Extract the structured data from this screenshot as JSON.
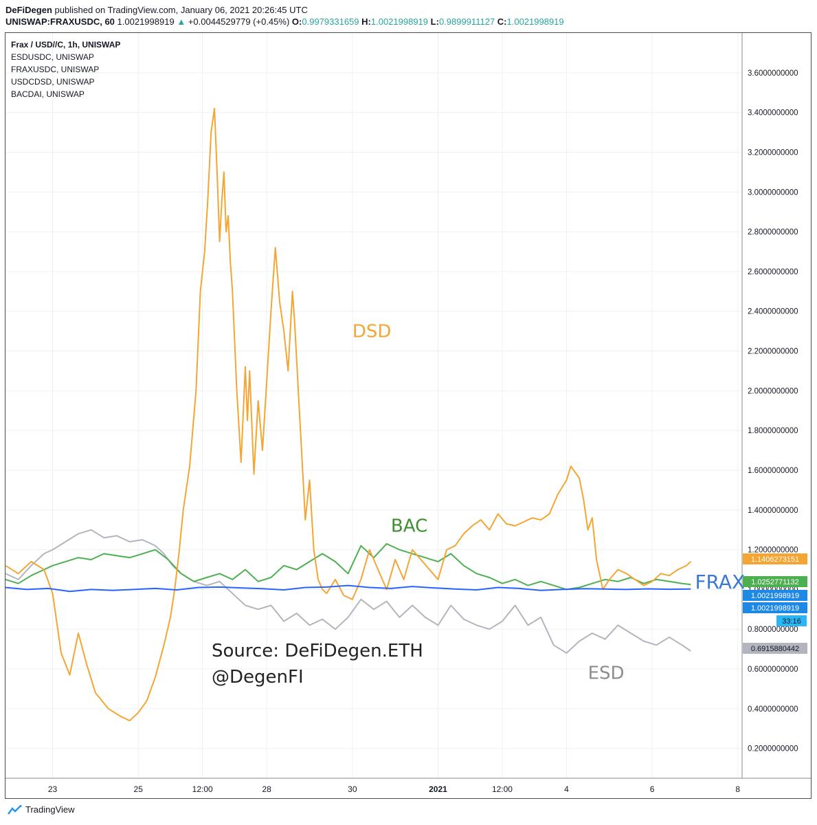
{
  "header": {
    "author": "DeFiDegen",
    "published": "published on TradingView.com, January 06, 2021 20:26:45 UTC",
    "symbol": "UNISWAP:FRAXUSDC, 60",
    "last": "1.0021998919",
    "change": "+0.0044529779 (+0.45%)",
    "o_label": "O:",
    "o_value": "0.9979331659",
    "h_label": "H:",
    "h_value": "1.0021998919",
    "l_label": "L:",
    "l_value": "0.9899911127",
    "c_label": "C:",
    "c_value": "1.0021998919"
  },
  "legend": [
    "Frax / USD//C, 1h, UNISWAP",
    "ESDUSDC, UNISWAP",
    "FRAXUSDC, UNISWAP",
    "USDCDSD, UNISWAP",
    "BACDAI, UNISWAP"
  ],
  "source_text": [
    "Source: DeFiDegen.ETH",
    "@DegenFI"
  ],
  "footer": {
    "brand": "TradingView",
    "icon": "tradingview-cloud-icon"
  },
  "colors": {
    "dsd": "#f4a532",
    "bac": "#4caf50",
    "frax": "#2962ff",
    "esd": "#b2b5be"
  },
  "chart_data": {
    "type": "line",
    "ylim": [
      0.05,
      3.8
    ],
    "yticks": [
      "0.2000000000",
      "0.4000000000",
      "0.6000000000",
      "0.8000000000",
      "1.0000000000",
      "1.2000000000",
      "1.4000000000",
      "1.6000000000",
      "1.8000000000",
      "2.0000000000",
      "2.2000000000",
      "2.4000000000",
      "2.6000000000",
      "2.8000000000",
      "3.0000000000",
      "3.2000000000",
      "3.4000000000",
      "3.6000000000"
    ],
    "ytick_values": [
      0.2,
      0.4,
      0.6,
      0.8,
      1.0,
      1.2,
      1.4,
      1.6,
      1.8,
      2.0,
      2.2,
      2.4,
      2.6,
      2.8,
      3.0,
      3.2,
      3.4,
      3.6
    ],
    "xlim": [
      21.9,
      39.1
    ],
    "xticks": [
      {
        "label": "23",
        "t": 23.0,
        "bold": false
      },
      {
        "label": "25",
        "t": 25.0,
        "bold": false
      },
      {
        "label": "12:00",
        "t": 26.5,
        "bold": false
      },
      {
        "label": "28",
        "t": 28.0,
        "bold": false
      },
      {
        "label": "30",
        "t": 30.0,
        "bold": false
      },
      {
        "label": "2021",
        "t": 32.0,
        "bold": true
      },
      {
        "label": "12:00",
        "t": 33.5,
        "bold": false
      },
      {
        "label": "4",
        "t": 35.0,
        "bold": false
      },
      {
        "label": "6",
        "t": 37.0,
        "bold": false
      },
      {
        "label": "8",
        "t": 39.0,
        "bold": false
      }
    ],
    "series": [
      {
        "name": "DSD",
        "key": "dsd",
        "label_x": 30.0,
        "label_y": 2.27,
        "x": [
          21.9,
          22.2,
          22.5,
          22.8,
          23.0,
          23.2,
          23.4,
          23.6,
          23.8,
          24.0,
          24.3,
          24.6,
          24.8,
          25.0,
          25.2,
          25.4,
          25.6,
          25.75,
          25.85,
          25.95,
          26.05,
          26.2,
          26.35,
          26.45,
          26.55,
          26.62,
          26.7,
          26.78,
          26.85,
          26.9,
          26.95,
          27.0,
          27.05,
          27.1,
          27.15,
          27.2,
          27.3,
          27.4,
          27.5,
          27.55,
          27.6,
          27.7,
          27.8,
          27.9,
          28.0,
          28.1,
          28.2,
          28.3,
          28.4,
          28.5,
          28.6,
          28.65,
          28.75,
          28.85,
          28.9,
          29.0,
          29.1,
          29.2,
          29.3,
          29.4,
          29.6,
          29.8,
          30.0,
          30.2,
          30.4,
          30.6,
          30.8,
          31.0,
          31.2,
          31.4,
          31.6,
          31.8,
          32.0,
          32.2,
          32.4,
          32.6,
          32.8,
          33.0,
          33.2,
          33.4,
          33.6,
          33.8,
          34.0,
          34.2,
          34.4,
          34.6,
          34.8,
          35.0,
          35.1,
          35.3,
          35.4,
          35.5,
          35.6,
          35.7,
          35.85,
          36.0,
          36.2,
          36.4,
          36.6,
          36.8,
          37.0,
          37.2,
          37.4,
          37.6,
          37.8,
          37.9
        ],
        "y": [
          1.12,
          1.08,
          1.14,
          1.1,
          0.98,
          0.68,
          0.57,
          0.78,
          0.62,
          0.48,
          0.4,
          0.36,
          0.34,
          0.38,
          0.44,
          0.56,
          0.72,
          0.86,
          1.0,
          1.18,
          1.4,
          1.62,
          2.0,
          2.5,
          2.7,
          2.95,
          3.3,
          3.42,
          3.05,
          2.75,
          2.95,
          3.1,
          2.8,
          2.88,
          2.65,
          2.5,
          2.0,
          1.64,
          2.12,
          1.85,
          2.1,
          1.58,
          1.95,
          1.7,
          2.05,
          2.4,
          2.72,
          2.45,
          2.3,
          2.1,
          2.5,
          2.35,
          1.95,
          1.55,
          1.35,
          1.55,
          1.2,
          1.05,
          1.0,
          0.98,
          1.05,
          0.97,
          0.95,
          1.05,
          1.2,
          1.1,
          1.0,
          1.15,
          1.05,
          1.2,
          1.15,
          1.1,
          1.05,
          1.2,
          1.22,
          1.28,
          1.32,
          1.35,
          1.3,
          1.38,
          1.33,
          1.32,
          1.34,
          1.36,
          1.35,
          1.38,
          1.48,
          1.55,
          1.62,
          1.56,
          1.45,
          1.3,
          1.36,
          1.15,
          1.0,
          1.05,
          1.1,
          1.08,
          1.05,
          1.02,
          1.04,
          1.08,
          1.07,
          1.1,
          1.12,
          1.14
        ]
      },
      {
        "name": "BAC",
        "key": "bac",
        "label_x": 30.9,
        "label_y": 1.29,
        "x": [
          21.9,
          22.2,
          22.5,
          22.8,
          23.0,
          23.3,
          23.6,
          23.9,
          24.2,
          24.5,
          24.8,
          25.1,
          25.4,
          25.7,
          26.0,
          26.3,
          26.6,
          26.9,
          27.2,
          27.5,
          27.8,
          28.1,
          28.4,
          28.7,
          29.0,
          29.3,
          29.6,
          29.9,
          30.2,
          30.5,
          30.8,
          31.1,
          31.4,
          31.7,
          32.0,
          32.3,
          32.6,
          32.9,
          33.2,
          33.5,
          33.8,
          34.1,
          34.4,
          34.7,
          35.0,
          35.3,
          35.6,
          35.9,
          36.2,
          36.5,
          36.8,
          37.1,
          37.4,
          37.7,
          37.9
        ],
        "y": [
          1.05,
          1.03,
          1.07,
          1.1,
          1.12,
          1.14,
          1.16,
          1.15,
          1.18,
          1.17,
          1.16,
          1.18,
          1.2,
          1.15,
          1.08,
          1.04,
          1.06,
          1.08,
          1.05,
          1.1,
          1.04,
          1.06,
          1.12,
          1.1,
          1.14,
          1.18,
          1.14,
          1.08,
          1.22,
          1.16,
          1.23,
          1.2,
          1.18,
          1.16,
          1.14,
          1.18,
          1.12,
          1.08,
          1.06,
          1.03,
          1.05,
          1.02,
          1.04,
          1.02,
          1.0,
          1.01,
          1.03,
          1.05,
          1.04,
          1.06,
          1.03,
          1.05,
          1.04,
          1.03,
          1.025
        ]
      },
      {
        "name": "FRAX",
        "key": "frax",
        "label_x": 38.0,
        "label_y": 1.004,
        "x": [
          21.9,
          22.4,
          22.9,
          23.4,
          23.9,
          24.4,
          24.9,
          25.4,
          25.9,
          26.4,
          26.9,
          27.4,
          27.9,
          28.4,
          28.9,
          29.4,
          29.9,
          30.4,
          30.9,
          31.4,
          31.9,
          32.4,
          32.9,
          33.4,
          33.9,
          34.4,
          34.9,
          35.4,
          35.9,
          36.4,
          36.9,
          37.4,
          37.9
        ],
        "y": [
          1.01,
          1.0,
          1.005,
          0.99,
          1.0,
          0.995,
          1.0,
          1.005,
          0.998,
          1.01,
          1.012,
          1.008,
          1.004,
          0.998,
          1.01,
          1.012,
          1.02,
          1.01,
          1.005,
          1.015,
          1.008,
          1.002,
          0.998,
          1.01,
          1.005,
          0.995,
          1.0,
          1.004,
          1.002,
          1.0,
          1.003,
          1.001,
          1.002
        ]
      },
      {
        "name": "ESD",
        "key": "esd",
        "label_x": 35.5,
        "label_y": 0.55,
        "x": [
          21.9,
          22.2,
          22.5,
          22.8,
          23.0,
          23.3,
          23.6,
          23.9,
          24.2,
          24.5,
          24.8,
          25.1,
          25.4,
          25.6,
          25.8,
          26.0,
          26.3,
          26.6,
          26.9,
          27.2,
          27.5,
          27.8,
          28.1,
          28.4,
          28.7,
          29.0,
          29.3,
          29.6,
          29.9,
          30.2,
          30.5,
          30.8,
          31.1,
          31.4,
          31.7,
          32.0,
          32.3,
          32.6,
          32.9,
          33.2,
          33.5,
          33.8,
          34.1,
          34.4,
          34.7,
          35.0,
          35.3,
          35.6,
          35.9,
          36.2,
          36.5,
          36.8,
          37.1,
          37.4,
          37.7,
          37.9
        ],
        "y": [
          1.08,
          1.05,
          1.12,
          1.18,
          1.2,
          1.24,
          1.28,
          1.3,
          1.26,
          1.27,
          1.24,
          1.25,
          1.22,
          1.18,
          1.12,
          1.08,
          1.04,
          1.02,
          1.04,
          0.98,
          0.92,
          0.9,
          0.92,
          0.84,
          0.88,
          0.82,
          0.85,
          0.8,
          0.86,
          0.95,
          0.9,
          0.94,
          0.86,
          0.92,
          0.86,
          0.82,
          0.92,
          0.85,
          0.82,
          0.8,
          0.84,
          0.92,
          0.82,
          0.86,
          0.72,
          0.68,
          0.74,
          0.78,
          0.75,
          0.82,
          0.78,
          0.74,
          0.72,
          0.76,
          0.72,
          0.69
        ]
      }
    ],
    "price_tags": [
      {
        "text": "1.1406273151",
        "value": 1.1406273151,
        "color": "#f4a532"
      },
      {
        "text": "1.0252771132",
        "value": 1.0252771132,
        "color": "#4caf50"
      },
      {
        "text": "1.0021998919",
        "value": 1.0021998919,
        "color": "#1e88e5"
      },
      {
        "text": "1.0021998919",
        "value": 1.0021998919,
        "color": "#1e88e5"
      },
      {
        "text": "33:16",
        "value": 1.0021998919,
        "color": "#29b6f6"
      },
      {
        "text": "0.6915880442",
        "value": 0.6915880442,
        "color": "#b2b5be"
      }
    ]
  }
}
